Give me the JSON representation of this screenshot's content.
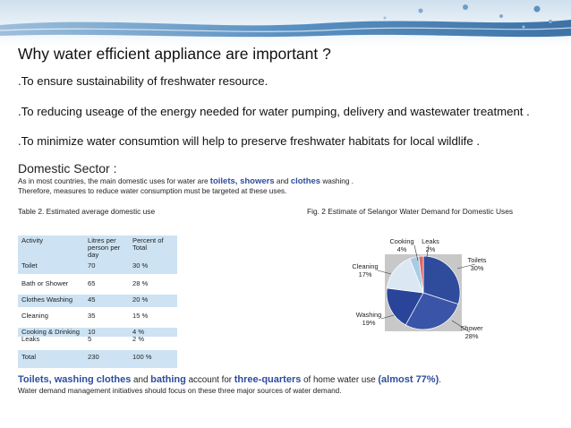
{
  "slide": {
    "title": "Why water efficient appliance are important ?",
    "bullets": [
      ".To ensure sustainability of freshwater resource.",
      ".To reducing useage of the energy needed for water pumping, delivery and wastewater treatment .",
      ".To minimize water consumtion will help to preserve freshwater habitats for local wildlife ."
    ],
    "sector_title": "Domestic Sector :",
    "intro_line1": {
      "a": "As in most countries, the main domestic uses for water are ",
      "b": "toilets",
      "c": ", ",
      "d": "showers",
      "e": " and ",
      "f": "clothes",
      "g": " washing ."
    },
    "intro_line2": "Therefore, measures to reduce water consumption must be targeted at these uses.",
    "table_caption": "Table 2. Estimated average domestic use",
    "figure_caption": "Fig. 2 Estimate of Selangor Water Demand for Domestic Uses",
    "footer_line1": {
      "a": "Toilets, washing clothes",
      "b": " and ",
      "c": "bathing",
      "d": " account for ",
      "e": "three-quarters",
      "f": " of home water use ",
      "g": "(almost 77%)",
      "h": "."
    },
    "footer_line2": "Water demand management initiatives should focus on these three major sources of water demand."
  },
  "table": {
    "headers": [
      "Activity",
      "Litres per person per day",
      "Percent of Total"
    ],
    "header_lines": [
      [
        "Activity"
      ],
      [
        "Litres per",
        "person per",
        "day"
      ],
      [
        "Percent of",
        "Total"
      ]
    ],
    "rows": [
      {
        "activity": "Toilet",
        "litres": "70",
        "percent": "30 %"
      },
      {
        "activity": "Bath or Shower",
        "litres": "65",
        "percent": "28 %"
      },
      {
        "activity": "Clothes Washing",
        "litres": "45",
        "percent": "20 %"
      },
      {
        "activity": "Cleaning",
        "litres": "35",
        "percent": "15 %"
      },
      {
        "activity": "Cooking & Drinking",
        "litres": "10",
        "percent": "4 %"
      },
      {
        "activity": "Leaks",
        "litres": "5",
        "percent": "2 %"
      },
      {
        "activity": "Total",
        "litres": "230",
        "percent": "100 %"
      }
    ]
  },
  "chart_data": {
    "type": "pie",
    "title": "",
    "categories": [
      "Toilets",
      "Shower",
      "Washing",
      "Cleaning",
      "Cooking",
      "Leaks"
    ],
    "values": [
      30,
      28,
      19,
      17,
      4,
      2
    ],
    "labels": [
      "30%",
      "28%",
      "19%",
      "17%",
      "4%",
      "2%"
    ],
    "colors": [
      "#2f4b9c",
      "#3a55a8",
      "#2a449a",
      "#dbe8f4",
      "#a9cce3",
      "#e06666"
    ],
    "legend": "none"
  }
}
